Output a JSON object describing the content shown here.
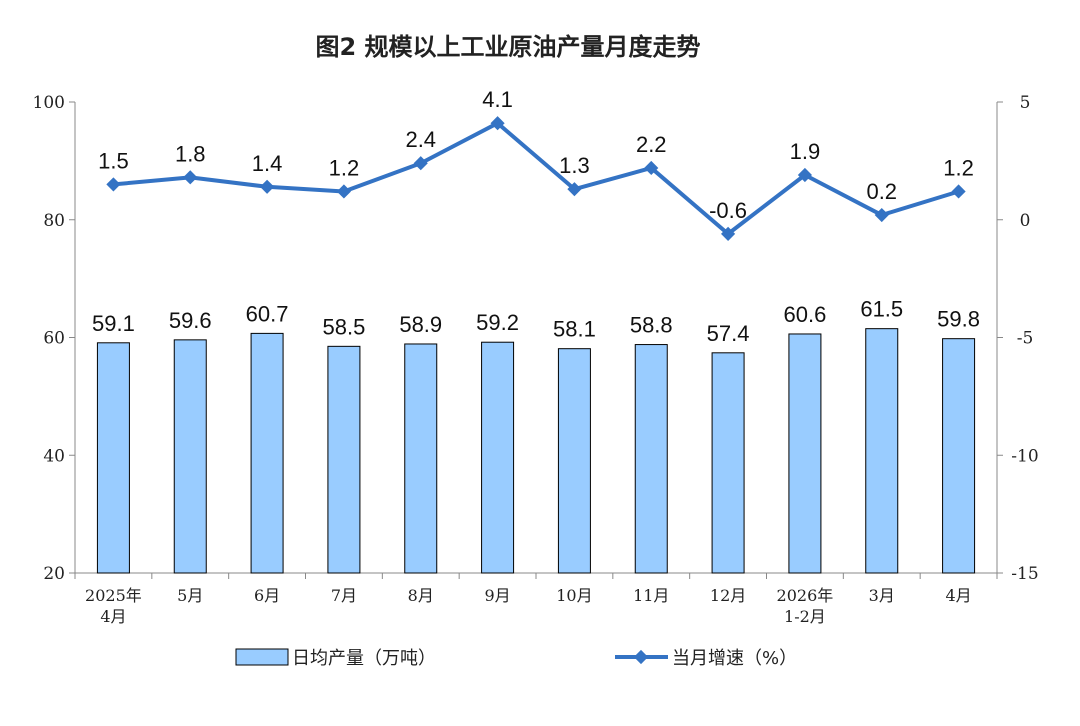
{
  "chart_data": {
    "type": "bar",
    "title": "图2  规模以上工业原油产量月度走势",
    "categories": [
      [
        "2025年",
        "4月"
      ],
      [
        "5月"
      ],
      [
        "6月"
      ],
      [
        "7月"
      ],
      [
        "8月"
      ],
      [
        "9月"
      ],
      [
        "10月"
      ],
      [
        "11月"
      ],
      [
        "12月"
      ],
      [
        "2026年",
        "1-2月"
      ],
      [
        "3月"
      ],
      [
        "4月"
      ]
    ],
    "left_axis": {
      "ylim": [
        20,
        100
      ],
      "ticks": [
        "20",
        "40",
        "60",
        "80",
        "100"
      ]
    },
    "right_axis": {
      "ylim": [
        -15,
        5
      ],
      "ticks": [
        "-15",
        "-10",
        "-5",
        "0",
        "5"
      ]
    },
    "series": [
      {
        "name": "日均产量（万吨）",
        "type": "bar",
        "axis": "left",
        "color": "#99CCFF",
        "values": [
          59.1,
          59.6,
          60.7,
          58.5,
          58.9,
          59.2,
          58.1,
          58.8,
          57.4,
          60.6,
          61.5,
          59.8
        ],
        "labels": [
          "59.1",
          "59.6",
          "60.7",
          "58.5",
          "58.9",
          "59.2",
          "58.1",
          "58.8",
          "57.4",
          "60.6",
          "61.5",
          "59.8"
        ]
      },
      {
        "name": "当月增速（%）",
        "type": "line",
        "axis": "right",
        "color": "#3473C4",
        "values": [
          1.5,
          1.8,
          1.4,
          1.2,
          2.4,
          4.1,
          1.3,
          2.2,
          -0.6,
          1.9,
          0.2,
          1.2
        ],
        "labels": [
          "1.5",
          "1.8",
          "1.4",
          "1.2",
          "2.4",
          "4.1",
          "1.3",
          "2.2",
          "-0.6",
          "1.9",
          "0.2",
          "1.2"
        ]
      }
    ],
    "legend_position": "bottom",
    "grid": false
  }
}
